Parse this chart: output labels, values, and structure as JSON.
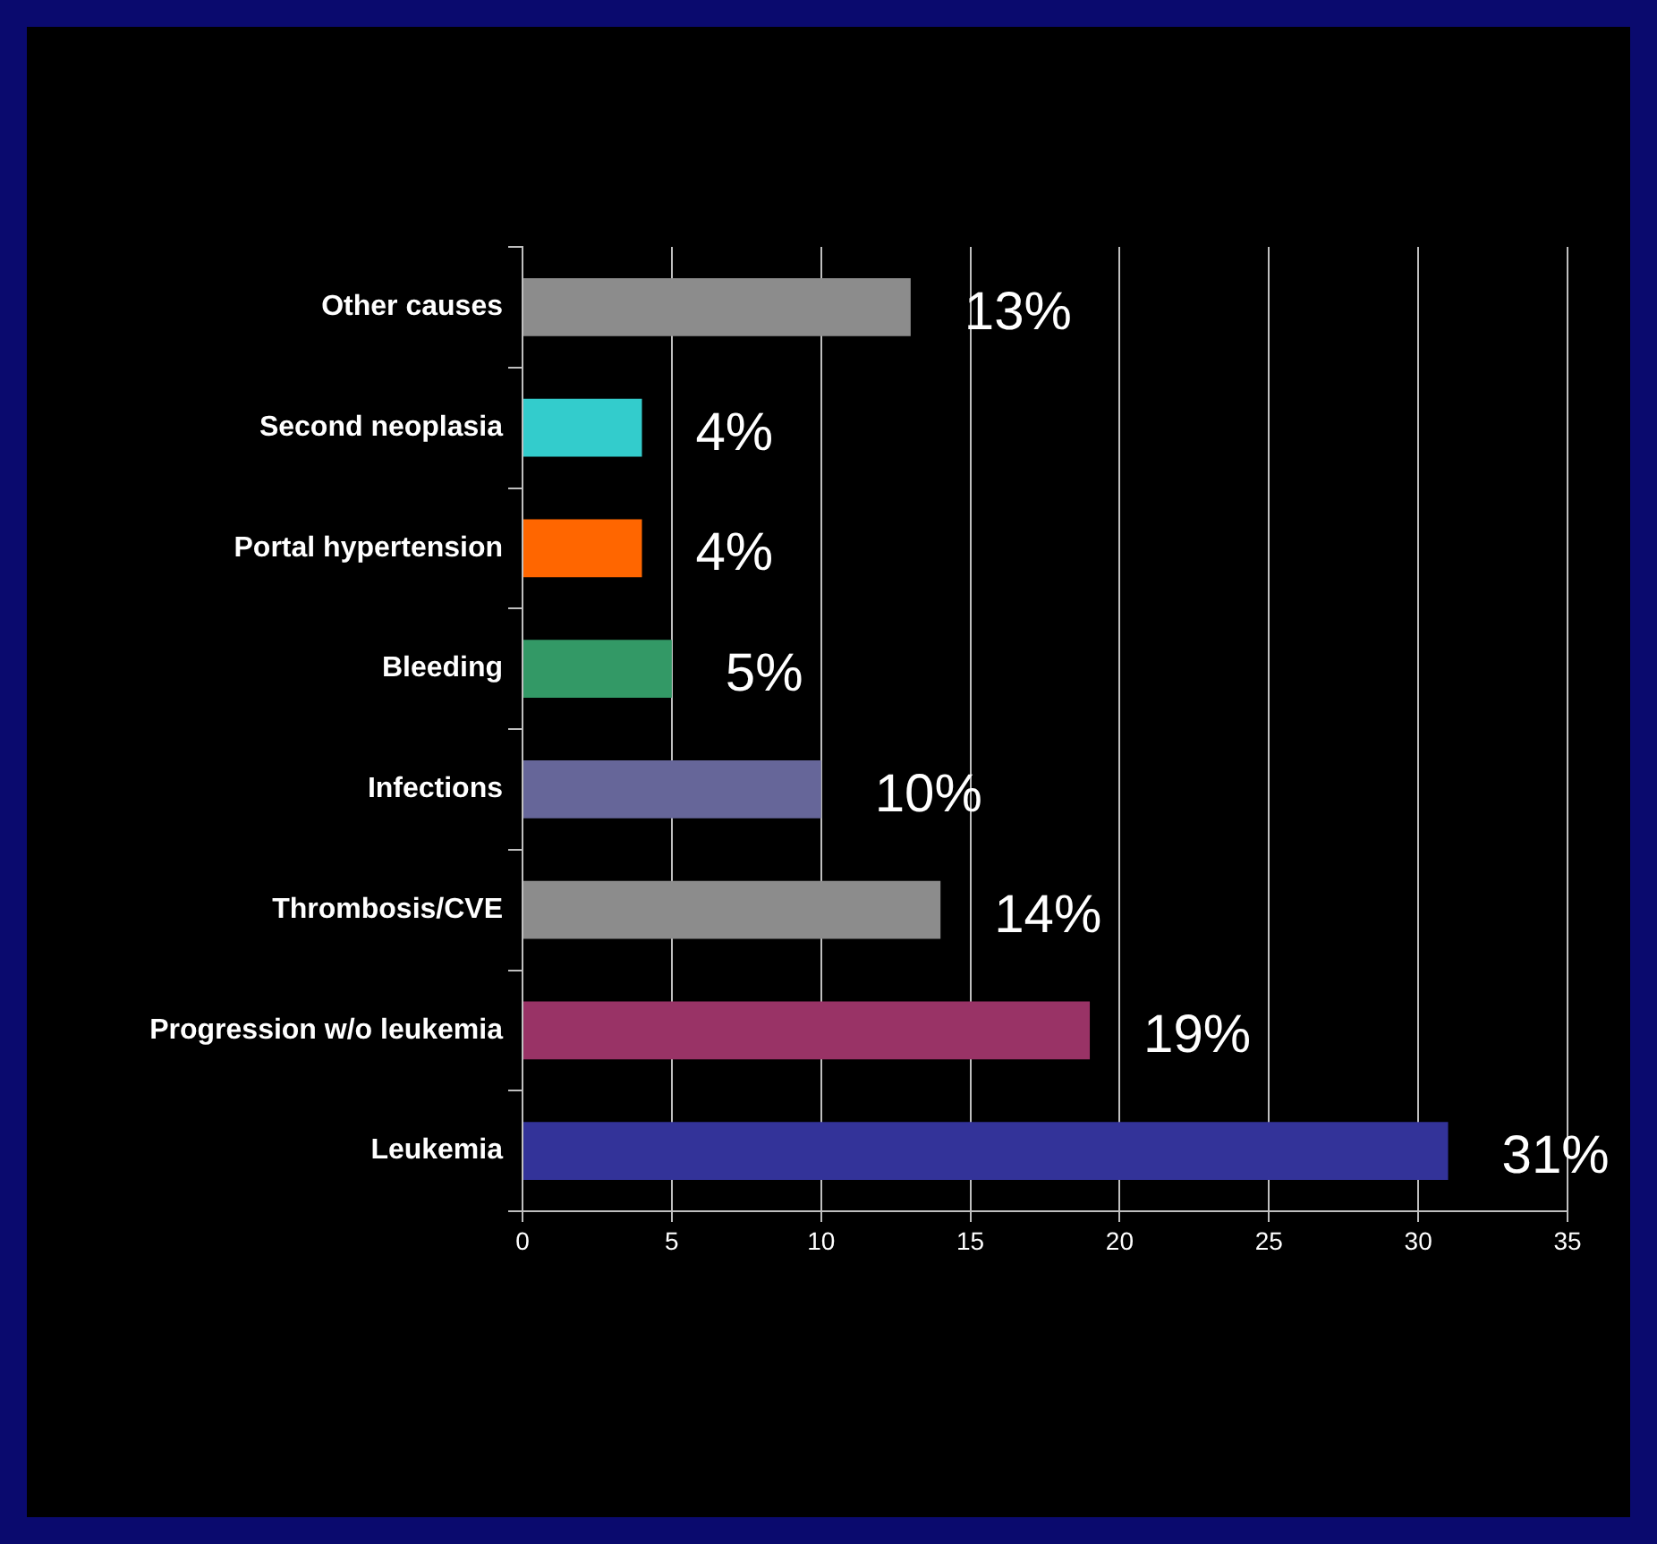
{
  "chart_data": {
    "type": "bar",
    "orientation": "horizontal",
    "categories": [
      "Other causes",
      "Second neoplasia",
      "Portal hypertension",
      "Bleeding",
      "Infections",
      "Thrombosis/CVE",
      "Progression w/o leukemia",
      "Leukemia"
    ],
    "values": [
      13,
      4,
      4,
      5,
      10,
      14,
      19,
      31
    ],
    "colors": [
      "#8c8c8c",
      "#33cccc",
      "#ff6600",
      "#339966",
      "#666699",
      "#8c8c8c",
      "#993366",
      "#333399"
    ],
    "value_labels": [
      "13%",
      "4%",
      "4%",
      "5%",
      "10%",
      "14%",
      "19%",
      "31%"
    ],
    "xlim": [
      0,
      35
    ],
    "xticks": [
      0,
      5,
      10,
      15,
      20,
      25,
      30,
      35
    ],
    "grid": "x",
    "legend": false
  }
}
